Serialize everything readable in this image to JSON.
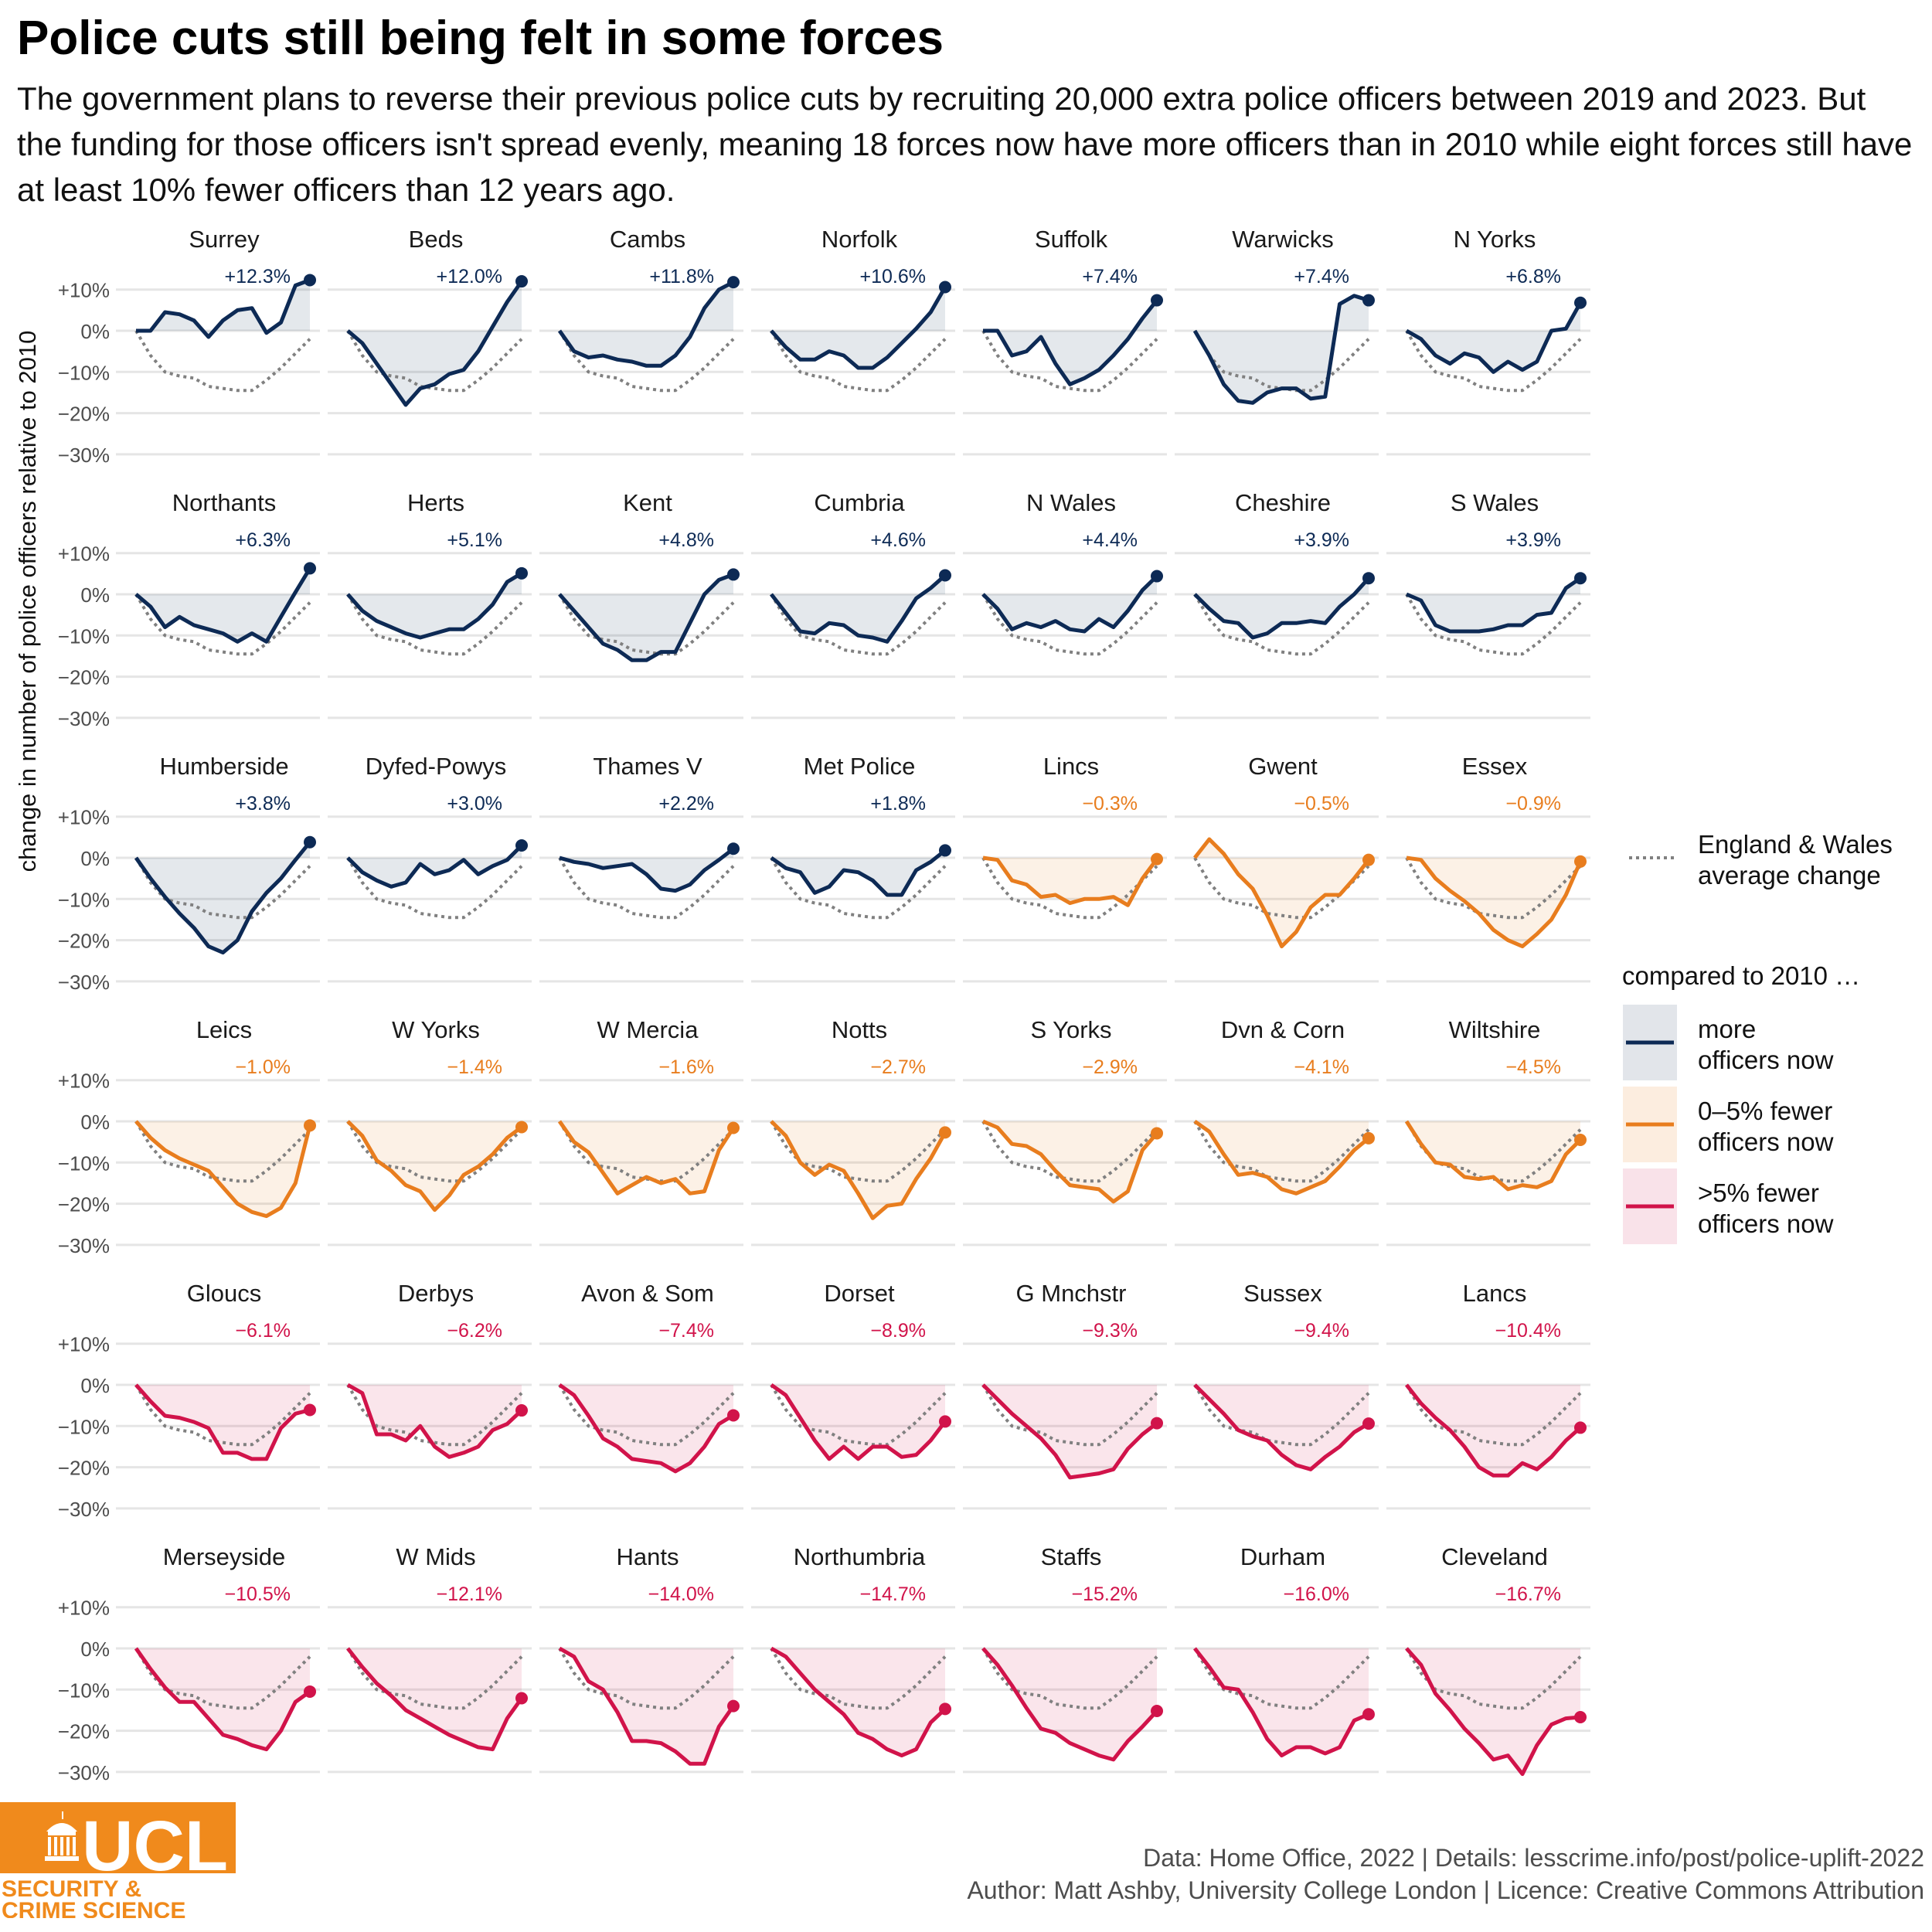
{
  "title": "Police cuts still being felt in some forces",
  "subtitle": "The government plans to reverse their previous police cuts by recruiting 20,000 extra police officers between 2019 and 2023. But the funding for those officers isn't spread evenly, meaning 18 forces now have more officers than in 2010 while eight forces still have at least 10% fewer officers than 12 years ago.",
  "caption": {
    "line1": "Data: Home Office, 2022 |  Details: lesscrime.info/post/police-uplift-2022",
    "line2": "Author: Matt Ashby, University College London |  Licence: Creative Commons Attribution"
  },
  "logo": {
    "text_main": "UCL",
    "text_line1": "SECURITY &",
    "text_line2": "CRIME SCIENCE",
    "color": "#f08a1c"
  },
  "colors": {
    "more": "#0d2a55",
    "fewer_0_5": "#e87d1e",
    "fewer_gt5": "#d1134a",
    "average": "#808080",
    "grid": "#e5e5e5"
  },
  "legend": {
    "average_label_1": "England & Wales",
    "average_label_2": "average change",
    "group_title": "compared to 2010 …",
    "items": [
      {
        "key": "more",
        "line1": "more",
        "line2": "officers now"
      },
      {
        "key": "fewer_0_5",
        "line1": "0–5% fewer",
        "line2": "officers now"
      },
      {
        "key": "fewer_gt5",
        "line1": ">5% fewer",
        "line2": "officers now"
      }
    ]
  },
  "chart_data": {
    "type": "line",
    "layout": "small multiples (6 rows x 7 columns)",
    "ylabel": "change in number of police officers relative to 2010",
    "y_ticks": [
      "+10%",
      "0%",
      "−10%",
      "−20%",
      "−30%"
    ],
    "y_tick_values": [
      10,
      0,
      -10,
      -20,
      -30
    ],
    "ylim": [
      -32,
      14
    ],
    "x_points": 13,
    "average": [
      0,
      -6,
      -10,
      -11,
      -11.5,
      -13.5,
      -14,
      -14.5,
      -14.5,
      -12,
      -9,
      -5.5,
      -2
    ],
    "panels": [
      {
        "name": "Surrey",
        "label": "+12.3%",
        "group": "more",
        "values": [
          0,
          0,
          4.5,
          4,
          2.5,
          -1.5,
          2.5,
          5,
          5.5,
          -0.5,
          2,
          11,
          12.3
        ]
      },
      {
        "name": "Beds",
        "label": "+12.0%",
        "group": "more",
        "values": [
          0,
          -3,
          -8,
          -13,
          -18,
          -14,
          -13,
          -10.5,
          -9.5,
          -5,
          1,
          7,
          12
        ]
      },
      {
        "name": "Cambs",
        "label": "+11.8%",
        "group": "more",
        "values": [
          0,
          -5,
          -6.5,
          -6,
          -7,
          -7.5,
          -8.5,
          -8.5,
          -6,
          -1.5,
          5.5,
          10,
          11.8
        ]
      },
      {
        "name": "Norfolk",
        "label": "+10.6%",
        "group": "more",
        "values": [
          0,
          -4,
          -7,
          -7,
          -5,
          -6,
          -9,
          -9,
          -6.5,
          -3,
          0.5,
          4.5,
          10.6
        ]
      },
      {
        "name": "Suffolk",
        "label": "+7.4%",
        "group": "more",
        "values": [
          0,
          0,
          -6,
          -5,
          -1.5,
          -8,
          -13,
          -11.5,
          -9.5,
          -6,
          -2,
          3,
          7.4
        ]
      },
      {
        "name": "Warwicks",
        "label": "+7.4%",
        "group": "more",
        "values": [
          0,
          -6,
          -13,
          -17,
          -17.5,
          -15,
          -14,
          -14,
          -16.5,
          -16,
          6.5,
          8.5,
          7.4
        ]
      },
      {
        "name": "N Yorks",
        "label": "+6.8%",
        "group": "more",
        "values": [
          0,
          -2,
          -6,
          -8,
          -5.5,
          -6.5,
          -10,
          -7.5,
          -9.5,
          -7.5,
          0,
          0.5,
          6.8
        ]
      },
      {
        "name": "Northants",
        "label": "+6.3%",
        "group": "more",
        "values": [
          0,
          -3,
          -8,
          -5.5,
          -7.5,
          -8.5,
          -9.5,
          -11.5,
          -9.5,
          -11.5,
          -5.5,
          0.5,
          6.3
        ]
      },
      {
        "name": "Herts",
        "label": "+5.1%",
        "group": "more",
        "values": [
          0,
          -4,
          -6.5,
          -8,
          -9.5,
          -10.5,
          -9.5,
          -8.5,
          -8.5,
          -6,
          -2.5,
          3,
          5.1
        ]
      },
      {
        "name": "Kent",
        "label": "+4.8%",
        "group": "more",
        "values": [
          0,
          -4,
          -8,
          -12,
          -13.5,
          -16,
          -16,
          -14,
          -14,
          -7,
          0,
          3.5,
          4.8
        ]
      },
      {
        "name": "Cumbria",
        "label": "+4.6%",
        "group": "more",
        "values": [
          0,
          -4.5,
          -9,
          -9.5,
          -7,
          -7.5,
          -10,
          -10.5,
          -11.5,
          -6.5,
          -1,
          1.5,
          4.6
        ]
      },
      {
        "name": "N Wales",
        "label": "+4.4%",
        "group": "more",
        "values": [
          0,
          -3.5,
          -8.5,
          -7,
          -8,
          -6.5,
          -8.5,
          -9,
          -6,
          -8,
          -4,
          1,
          4.4
        ]
      },
      {
        "name": "Cheshire",
        "label": "+3.9%",
        "group": "more",
        "values": [
          0,
          -3.5,
          -6.5,
          -7,
          -10.5,
          -9.5,
          -7,
          -7,
          -6.5,
          -7,
          -3,
          0,
          3.9
        ]
      },
      {
        "name": "S Wales",
        "label": "+3.9%",
        "group": "more",
        "values": [
          0,
          -1.5,
          -7.5,
          -9,
          -9,
          -9,
          -8.5,
          -7.5,
          -7.5,
          -5,
          -4.5,
          1.5,
          3.9
        ]
      },
      {
        "name": "Humberside",
        "label": "+3.8%",
        "group": "more",
        "values": [
          0,
          -5,
          -9.5,
          -13.5,
          -17,
          -21.5,
          -23,
          -20,
          -13,
          -8.5,
          -5,
          -0.5,
          3.8
        ]
      },
      {
        "name": "Dyfed-Powys",
        "label": "+3.0%",
        "group": "more",
        "values": [
          0,
          -3.5,
          -5.5,
          -7,
          -6,
          -1.5,
          -4,
          -3,
          -0.5,
          -4,
          -2,
          -0.5,
          3.0
        ]
      },
      {
        "name": "Thames V",
        "label": "+2.2%",
        "group": "more",
        "values": [
          0,
          -1,
          -1.5,
          -2.5,
          -2,
          -1.5,
          -4,
          -7.5,
          -8,
          -6.5,
          -3,
          -0.5,
          2.2
        ]
      },
      {
        "name": "Met Police",
        "label": "+1.8%",
        "group": "more",
        "values": [
          0,
          -2.5,
          -3.5,
          -8.5,
          -7,
          -3,
          -3.5,
          -5.5,
          -9,
          -9,
          -3,
          -1,
          1.8
        ]
      },
      {
        "name": "Lincs",
        "label": "−0.3%",
        "group": "fewer_0_5",
        "values": [
          0,
          -0.5,
          -5.5,
          -6.5,
          -9.5,
          -9,
          -11,
          -10,
          -10,
          -9.5,
          -11.5,
          -5,
          -0.3
        ]
      },
      {
        "name": "Gwent",
        "label": "−0.5%",
        "group": "fewer_0_5",
        "values": [
          0,
          4.5,
          1,
          -4,
          -7.5,
          -14,
          -21.5,
          -18,
          -12,
          -9,
          -9,
          -5,
          -0.5
        ]
      },
      {
        "name": "Essex",
        "label": "−0.9%",
        "group": "fewer_0_5",
        "values": [
          0,
          -0.5,
          -5,
          -8,
          -10.5,
          -13.5,
          -17.5,
          -20,
          -21.5,
          -18.5,
          -15,
          -9,
          -0.9
        ]
      },
      {
        "name": "Leics",
        "label": "−1.0%",
        "group": "fewer_0_5",
        "values": [
          0,
          -4,
          -7,
          -9,
          -10.5,
          -12,
          -16,
          -20,
          -22,
          -23,
          -21,
          -15,
          -1.0
        ]
      },
      {
        "name": "W Yorks",
        "label": "−1.4%",
        "group": "fewer_0_5",
        "values": [
          0,
          -3.5,
          -9.5,
          -12,
          -15.5,
          -17,
          -21.5,
          -18,
          -13,
          -11,
          -8,
          -4,
          -1.4
        ]
      },
      {
        "name": "W Mercia",
        "label": "−1.6%",
        "group": "fewer_0_5",
        "values": [
          0,
          -5,
          -7.5,
          -12.5,
          -17.5,
          -15.5,
          -13.5,
          -15,
          -14,
          -17.5,
          -17,
          -7,
          -1.6
        ]
      },
      {
        "name": "Notts",
        "label": "−2.7%",
        "group": "fewer_0_5",
        "values": [
          0,
          -3.5,
          -10,
          -13,
          -10.5,
          -12,
          -17.5,
          -23.5,
          -20.5,
          -20,
          -14,
          -9,
          -2.7
        ]
      },
      {
        "name": "S Yorks",
        "label": "−2.9%",
        "group": "fewer_0_5",
        "values": [
          0,
          -1.5,
          -5.5,
          -6,
          -8,
          -12,
          -15.5,
          -16,
          -16.5,
          -19.5,
          -17,
          -7,
          -2.9
        ]
      },
      {
        "name": "Dvn & Corn",
        "label": "−4.1%",
        "group": "fewer_0_5",
        "values": [
          0,
          -2.5,
          -8,
          -13,
          -12.5,
          -13.5,
          -16.5,
          -17.5,
          -16,
          -14.5,
          -11,
          -7,
          -4.1
        ]
      },
      {
        "name": "Wiltshire",
        "label": "−4.5%",
        "group": "fewer_0_5",
        "values": [
          0,
          -5.5,
          -10,
          -10.5,
          -13.5,
          -14,
          -13.5,
          -16.5,
          -15.5,
          -16,
          -14.5,
          -8,
          -4.5
        ]
      },
      {
        "name": "Gloucs",
        "label": "−6.1%",
        "group": "fewer_gt5",
        "values": [
          0,
          -4,
          -7.5,
          -8,
          -9,
          -10.5,
          -16.5,
          -16.5,
          -18,
          -18,
          -10.5,
          -7,
          -6.1
        ]
      },
      {
        "name": "Derbys",
        "label": "−6.2%",
        "group": "fewer_gt5",
        "values": [
          0,
          -2,
          -12,
          -12,
          -13.5,
          -10,
          -15,
          -17.5,
          -16.5,
          -15,
          -11,
          -9.5,
          -6.2
        ]
      },
      {
        "name": "Avon & Som",
        "label": "−7.4%",
        "group": "fewer_gt5",
        "values": [
          0,
          -2.5,
          -7.5,
          -13,
          -15,
          -18,
          -18.5,
          -19,
          -21,
          -19,
          -15,
          -9.5,
          -7.4
        ]
      },
      {
        "name": "Dorset",
        "label": "−8.9%",
        "group": "fewer_gt5",
        "values": [
          0,
          -2.5,
          -8,
          -13.5,
          -18,
          -15,
          -18,
          -15,
          -15,
          -17.5,
          -17,
          -13.5,
          -8.9
        ]
      },
      {
        "name": "G Mnchstr",
        "label": "−9.3%",
        "group": "fewer_gt5",
        "values": [
          0,
          -3.5,
          -7,
          -10,
          -13,
          -17,
          -22.5,
          -22,
          -21.5,
          -20.5,
          -15.5,
          -12,
          -9.3
        ]
      },
      {
        "name": "Sussex",
        "label": "−9.4%",
        "group": "fewer_gt5",
        "values": [
          0,
          -3.5,
          -7,
          -11,
          -12.5,
          -13.5,
          -17,
          -19.5,
          -20.5,
          -17.5,
          -15,
          -11.5,
          -9.4
        ]
      },
      {
        "name": "Lancs",
        "label": "−10.4%",
        "group": "fewer_gt5",
        "values": [
          0,
          -4.5,
          -8,
          -11,
          -15,
          -20,
          -22,
          -22,
          -19,
          -20.5,
          -17.5,
          -13.5,
          -10.4
        ]
      },
      {
        "name": "Merseyside",
        "label": "−10.5%",
        "group": "fewer_gt5",
        "values": [
          0,
          -5,
          -9.5,
          -13,
          -13,
          -17,
          -21,
          -22,
          -23.5,
          -24.5,
          -20,
          -13,
          -10.5
        ]
      },
      {
        "name": "W Mids",
        "label": "−12.1%",
        "group": "fewer_gt5",
        "values": [
          0,
          -4.5,
          -8.5,
          -11.5,
          -15,
          -17,
          -19,
          -21,
          -22.5,
          -24,
          -24.5,
          -17,
          -12.1
        ]
      },
      {
        "name": "Hants",
        "label": "−14.0%",
        "group": "fewer_gt5",
        "values": [
          0,
          -2,
          -8,
          -10,
          -15.5,
          -22.5,
          -22.5,
          -23,
          -25,
          -28,
          -28,
          -19,
          -14.0
        ]
      },
      {
        "name": "Northumbria",
        "label": "−14.7%",
        "group": "fewer_gt5",
        "values": [
          0,
          -2,
          -6,
          -10,
          -13,
          -16,
          -20.5,
          -22,
          -24.5,
          -26,
          -24.5,
          -18,
          -14.7
        ]
      },
      {
        "name": "Staffs",
        "label": "−15.2%",
        "group": "fewer_gt5",
        "values": [
          0,
          -4,
          -9,
          -14.5,
          -19.5,
          -20.5,
          -23,
          -24.5,
          -26,
          -27,
          -22.5,
          -19,
          -15.2
        ]
      },
      {
        "name": "Durham",
        "label": "−16.0%",
        "group": "fewer_gt5",
        "values": [
          0,
          -4.5,
          -9.5,
          -10,
          -15.5,
          -22,
          -26,
          -24,
          -24,
          -25.5,
          -24,
          -17.5,
          -16.0
        ]
      },
      {
        "name": "Cleveland",
        "label": "−16.7%",
        "group": "fewer_gt5",
        "values": [
          0,
          -4,
          -11,
          -15,
          -19.5,
          -23,
          -27,
          -26,
          -30.5,
          -23.5,
          -18.5,
          -17,
          -16.7
        ]
      }
    ]
  }
}
